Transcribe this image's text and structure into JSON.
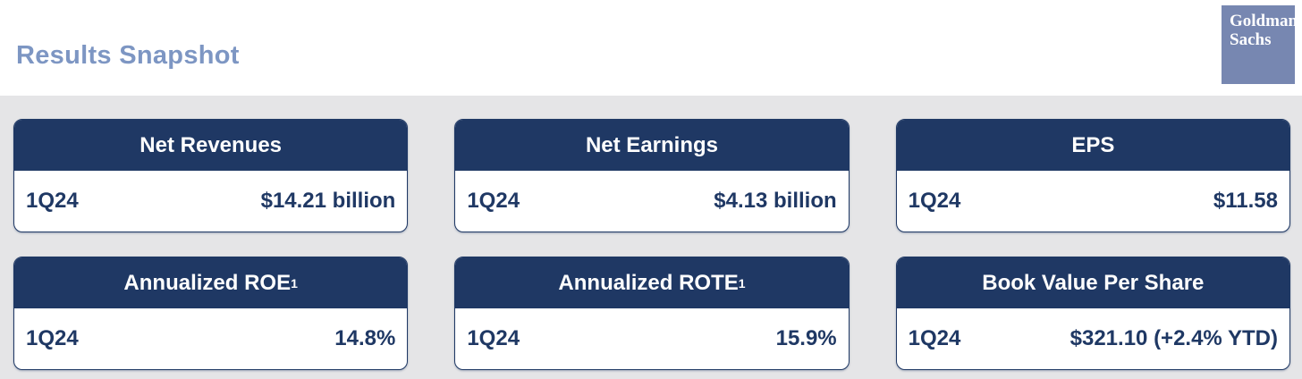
{
  "header": {
    "title": "Results Snapshot",
    "logo": {
      "line1": "Goldman",
      "line2": "Sachs"
    }
  },
  "cards": [
    {
      "title": "Net Revenues",
      "sup": "",
      "period": "1Q24",
      "value": "$14.21 billion"
    },
    {
      "title": "Net Earnings",
      "sup": "",
      "period": "1Q24",
      "value": "$4.13 billion"
    },
    {
      "title": "EPS",
      "sup": "",
      "period": "1Q24",
      "value": "$11.58"
    },
    {
      "title": "Annualized ROE",
      "sup": "1",
      "period": "1Q24",
      "value": "14.8%"
    },
    {
      "title": "Annualized ROTE",
      "sup": "1",
      "period": "1Q24",
      "value": "15.9%"
    },
    {
      "title": "Book Value Per Share",
      "sup": "",
      "period": "1Q24",
      "value": "$321.10 (+2.4% YTD)"
    }
  ],
  "colors": {
    "navy": "#1f3864",
    "title_blue": "#7d96c3",
    "logo_blue": "#7787b1",
    "content_background": "#e5e5e7",
    "card_background": "#ffffff"
  }
}
